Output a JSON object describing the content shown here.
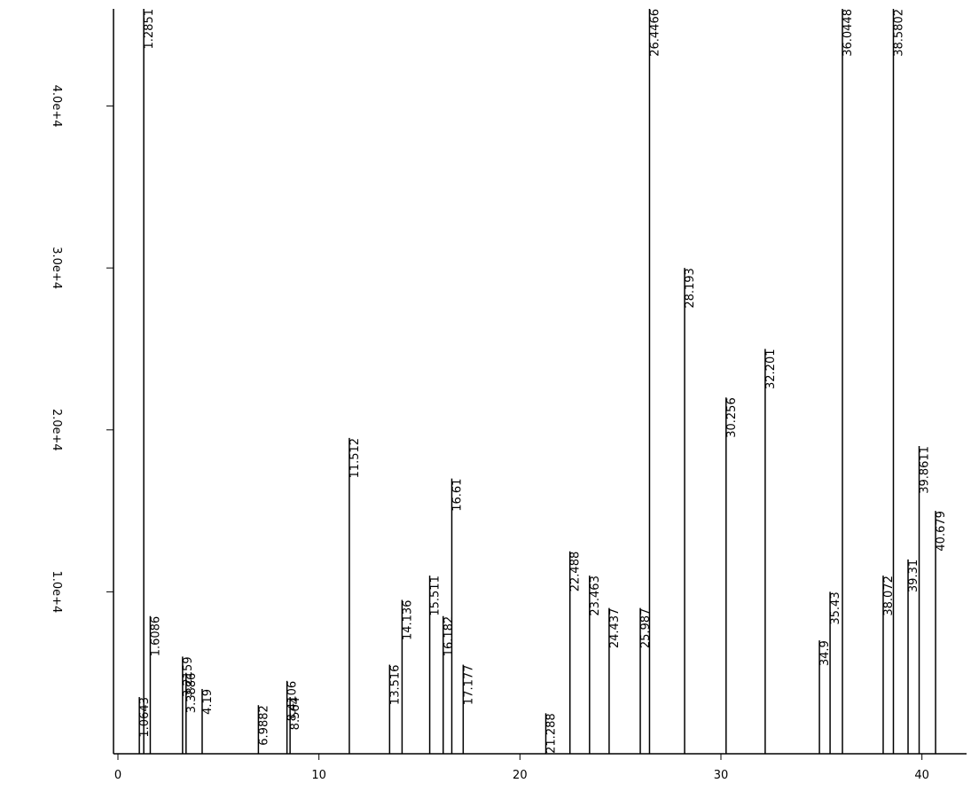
{
  "chart_data": {
    "type": "peaks",
    "color": "#000000",
    "x": [
      1.0643,
      1.2851,
      1.6086,
      3.2159,
      3.3886,
      4.19,
      6.9882,
      8.4106,
      8.564,
      11.512,
      13.516,
      14.136,
      15.511,
      16.182,
      16.61,
      17.177,
      21.288,
      22.488,
      23.463,
      24.437,
      25.987,
      26.4466,
      28.193,
      30.256,
      32.201,
      34.9,
      35.43,
      36.0448,
      38.072,
      38.5802,
      39.31,
      39.8611,
      40.679
    ],
    "values": [
      3500,
      46000,
      8500,
      6000,
      5000,
      4000,
      3000,
      4500,
      3500,
      19500,
      5500,
      9500,
      11000,
      8500,
      17000,
      5500,
      2500,
      12500,
      11000,
      9000,
      9000,
      46000,
      30000,
      22000,
      25000,
      7000,
      10000,
      46000,
      11000,
      46000,
      12000,
      19000,
      15000
    ],
    "xlim": [
      0,
      42
    ],
    "ylim": [
      0,
      46000
    ],
    "xticks": [
      0,
      10,
      20,
      30,
      40
    ],
    "yticks": [
      {
        "value": 10000,
        "label": "1.0e+4"
      },
      {
        "value": 20000,
        "label": "2.0e+4"
      },
      {
        "value": 30000,
        "label": "3.0e+4"
      },
      {
        "value": 40000,
        "label": "4.0e+4"
      }
    ]
  }
}
